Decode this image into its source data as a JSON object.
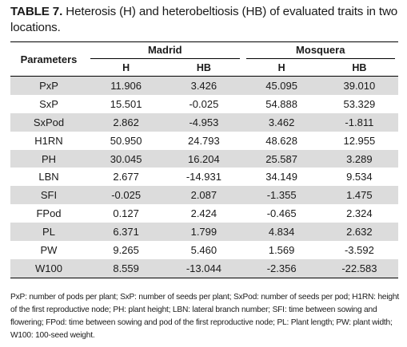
{
  "caption": {
    "label": "TABLE 7.",
    "text": " Heterosis (H) and heterobeltiosis (HB) of evaluated traits in two locations."
  },
  "table": {
    "param_header": "Parameters",
    "groups": [
      "Madrid",
      "Mosquera"
    ],
    "subheaders": [
      "H",
      "HB",
      "H",
      "HB"
    ],
    "rows": [
      [
        "PxP",
        "11.906",
        "3.426",
        "45.095",
        "39.010"
      ],
      [
        "SxP",
        "15.501",
        "-0.025",
        "54.888",
        "53.329"
      ],
      [
        "SxPod",
        "2.862",
        "-4.953",
        "3.462",
        "-1.811"
      ],
      [
        "H1RN",
        "50.950",
        "24.793",
        "48.628",
        "12.955"
      ],
      [
        "PH",
        "30.045",
        "16.204",
        "25.587",
        "3.289"
      ],
      [
        "LBN",
        "2.677",
        "-14.931",
        "34.149",
        "9.534"
      ],
      [
        "SFI",
        "-0.025",
        "2.087",
        "-1.355",
        "1.475"
      ],
      [
        "FPod",
        "0.127",
        "2.424",
        "-0.465",
        "2.324"
      ],
      [
        "PL",
        "6.371",
        "1.799",
        "4.834",
        "2.632"
      ],
      [
        "PW",
        "9.265",
        "5.460",
        "1.569",
        "-3.592"
      ],
      [
        "W100",
        "8.559",
        "-13.044",
        "-2.356",
        "-22.583"
      ]
    ]
  },
  "footnote": "PxP: number of pods per plant; SxP: number of seeds per plant; SxPod: number of seeds per pod; H1RN: height of the first reproductive node; PH: plant height; LBN: lateral branch number; SFI: time between sowing and flowering; FPod: time between sowing and pod of the first reproductive node; PL: Plant length; PW: plant width; W100: 100-seed weight.",
  "colors": {
    "row_shade": "#dcdcdc",
    "rule": "#000000"
  }
}
